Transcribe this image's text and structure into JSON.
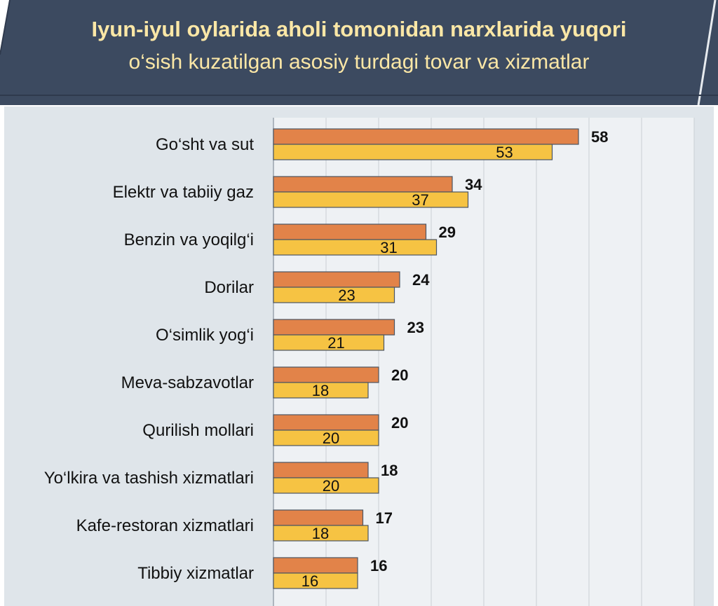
{
  "header": {
    "title": "Iyun-iyul oylarida aholi tomonidan narxlarida yuqori",
    "subtitle": "o‘sish kuzatilgan asosiy turdagi tovar va xizmatlar"
  },
  "colors": {
    "header_bg": "#3c4a60",
    "title_text": "#fbe7a6",
    "plot_bg": "#eef1f4",
    "series_1": "#e28349",
    "series_2": "#f6c343"
  },
  "chart_data": {
    "type": "bar",
    "orientation": "horizontal",
    "categories": [
      "Go‘sht va sut",
      "Elektr va tabiiy gaz",
      "Benzin va yoqilg‘i",
      "Dorilar",
      "O‘simlik yog‘i",
      "Meva-sabzavotlar",
      "Qurilish mollari",
      "Yo‘lkira va tashish xizmatlari",
      "Kafe-restoran xizmatlari",
      "Tibbiy xizmatlar"
    ],
    "series": [
      {
        "values": [
          58,
          34,
          29,
          24,
          23,
          20,
          20,
          18,
          17,
          16
        ]
      },
      {
        "values": [
          53,
          37,
          31,
          23,
          21,
          18,
          20,
          20,
          18,
          16
        ]
      }
    ],
    "xlim": [
      0,
      80
    ],
    "grid": true,
    "legend": "none"
  }
}
